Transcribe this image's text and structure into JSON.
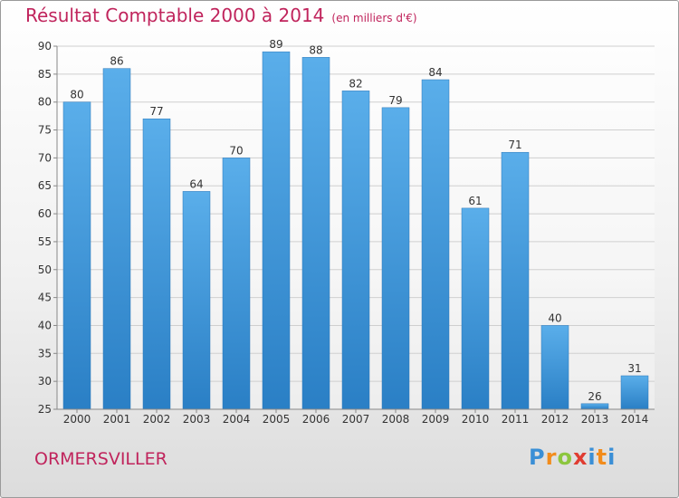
{
  "header": {
    "title": "Résultat Comptable 2000 à 2014",
    "subtitle": "(en milliers d'€)"
  },
  "footer": {
    "commune": "ORMERSVILLER",
    "brand": "Proxiti"
  },
  "colors": {
    "title": "#c0245c",
    "bar_top": "#5aaeea",
    "bar_bottom": "#2a7fc5"
  },
  "chart_data": {
    "type": "bar",
    "title": "Résultat Comptable 2000 à 2014",
    "subtitle": "(en milliers d'€)",
    "xlabel": "",
    "ylabel": "",
    "categories": [
      "2000",
      "2001",
      "2002",
      "2003",
      "2004",
      "2005",
      "2006",
      "2007",
      "2008",
      "2009",
      "2010",
      "2011",
      "2012",
      "2013",
      "2014"
    ],
    "values": [
      80,
      86,
      77,
      64,
      70,
      89,
      88,
      82,
      79,
      84,
      61,
      71,
      40,
      26,
      31
    ],
    "ylim": [
      25,
      90
    ],
    "yticks": [
      25,
      30,
      35,
      40,
      45,
      50,
      55,
      60,
      65,
      70,
      75,
      80,
      85,
      90
    ],
    "grid": true,
    "legend": "none"
  }
}
